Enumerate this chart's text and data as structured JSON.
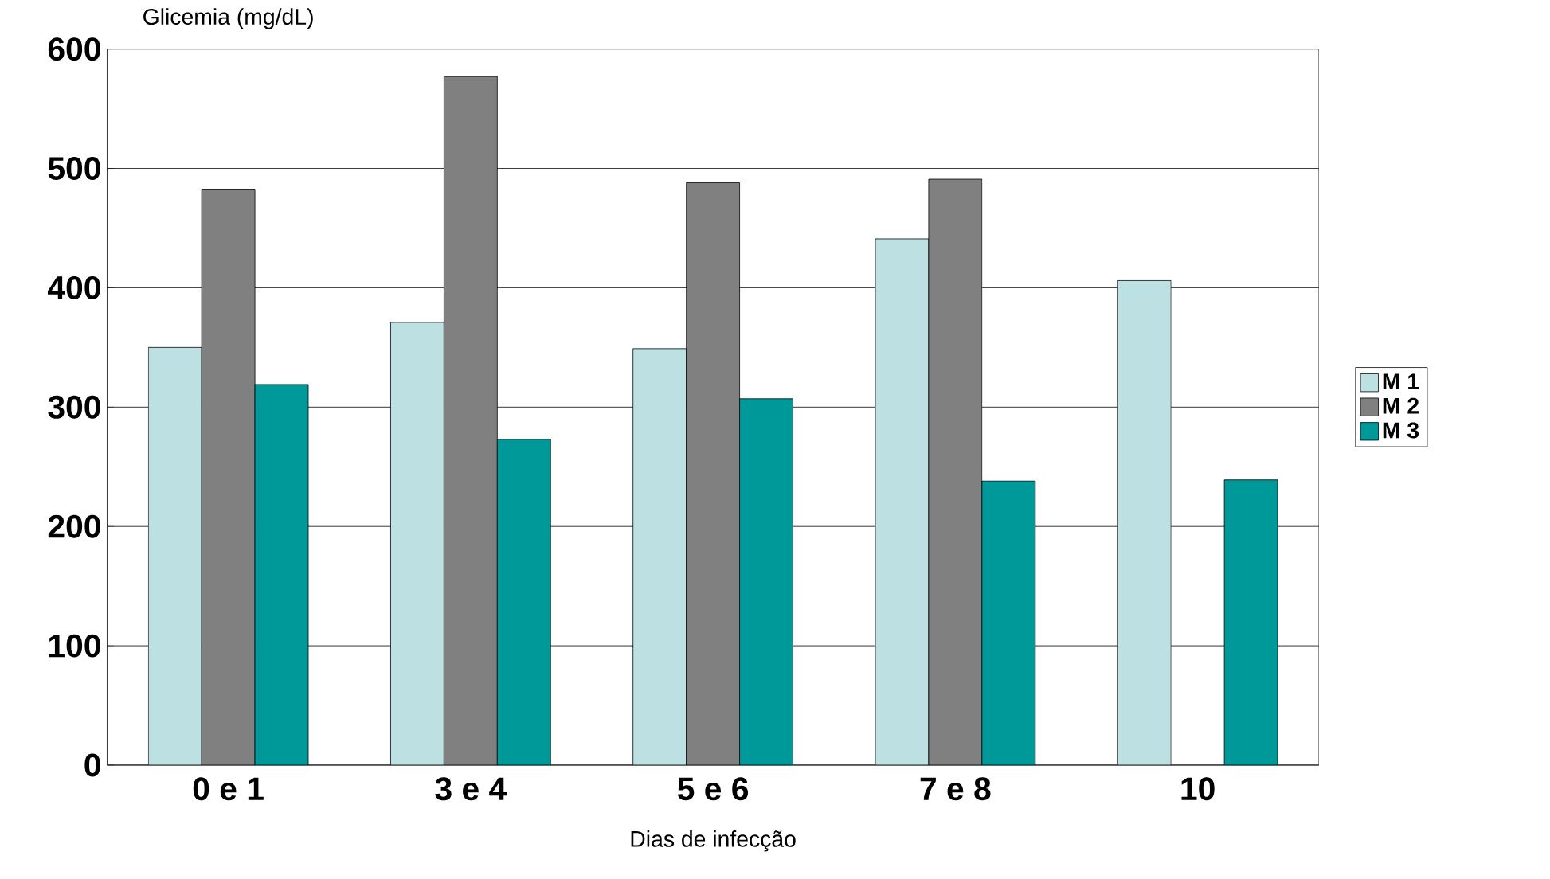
{
  "chart_data": {
    "type": "bar",
    "ylabel": "Glicemia (mg/dL)",
    "xlabel": "Dias de infecção",
    "categories": [
      "0 e 1",
      "3 e 4",
      "5 e 6",
      "7 e 8",
      "10"
    ],
    "series": [
      {
        "name": "M 1",
        "color": "#bde0e3",
        "values": [
          350,
          371,
          349,
          441,
          406
        ]
      },
      {
        "name": "M 2",
        "color": "#808080",
        "values": [
          482,
          577,
          488,
          491,
          null
        ]
      },
      {
        "name": "M 3",
        "color": "#009999",
        "values": [
          319,
          273,
          307,
          238,
          239
        ]
      }
    ],
    "ylim": [
      0,
      600
    ],
    "yticks": [
      0,
      100,
      200,
      300,
      400,
      500,
      600
    ],
    "grid": "y",
    "legend": "right"
  }
}
